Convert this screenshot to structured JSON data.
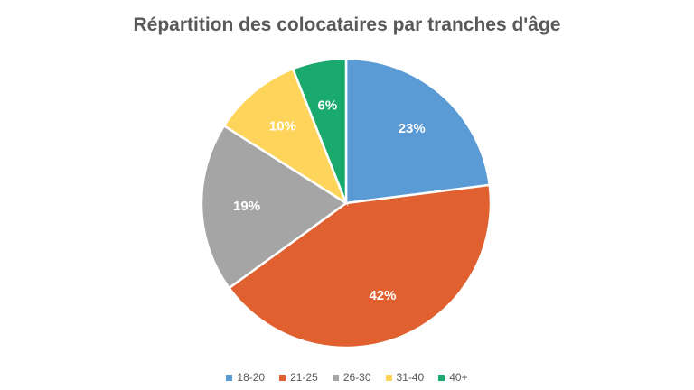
{
  "chart_data": {
    "type": "pie",
    "title": "Répartition des colocataires par tranches d'âge",
    "categories": [
      "18-20",
      "21-25",
      "26-30",
      "31-40",
      "40+"
    ],
    "values": [
      23,
      42,
      19,
      10,
      6
    ],
    "labels": [
      "23%",
      "42%",
      "19%",
      "10%",
      "6%"
    ],
    "colors": [
      "#5B9BD5",
      "#E06030",
      "#A5A5A5",
      "#FFD45A",
      "#1BAA6E"
    ],
    "legend_position": "bottom"
  }
}
